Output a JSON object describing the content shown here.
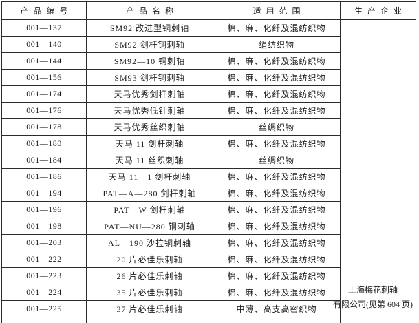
{
  "table": {
    "headers": {
      "code": "产品编号",
      "name": "产品名称",
      "scope": "适用范围",
      "producer": "生产企业"
    },
    "rows": [
      {
        "code": "001—137",
        "name": "SM92 改进型铜刺轴",
        "scope": "棉、麻、化纤及混纺织物"
      },
      {
        "code": "001—140",
        "name": "SM92 剑杆铜刺轴",
        "scope": "绢纺织物"
      },
      {
        "code": "001—144",
        "name": "SM92—10 铜刺轴",
        "scope": "棉、麻、化纤及混纺织物"
      },
      {
        "code": "001—156",
        "name": "SM93 剑杆铜刺轴",
        "scope": "棉、麻、化纤及混纺织物"
      },
      {
        "code": "001—174",
        "name": "天马优秀剑杆刺轴",
        "scope": "棉、麻、化纤及混纺织物"
      },
      {
        "code": "001—176",
        "name": "天马优秀低针刺轴",
        "scope": "棉、麻、化纤及混纺织物"
      },
      {
        "code": "001—178",
        "name": "天马优秀丝织刺轴",
        "scope": "丝绸织物"
      },
      {
        "code": "001—180",
        "name": "天马 11 剑杆刺轴",
        "scope": "棉、麻、化纤及混纺织物"
      },
      {
        "code": "001—184",
        "name": "天马 11 丝织刺轴",
        "scope": "丝绸织物"
      },
      {
        "code": "001—186",
        "name": "天马 11—1 剑杆刺轴",
        "scope": "棉、麻、化纤及混纺织物"
      },
      {
        "code": "001—194",
        "name": "PAT—A—280 剑杆刺轴",
        "scope": "棉、麻、化纤及混纺织物"
      },
      {
        "code": "001—196",
        "name": "PAT—W 剑杆刺轴",
        "scope": "棉、麻、化纤及混纺织物"
      },
      {
        "code": "001—198",
        "name": "PAT—NU—280 铜刺轴",
        "scope": "棉、麻、化纤及混纺织物"
      },
      {
        "code": "001—203",
        "name": "AL—190 沙拉铜刺轴",
        "scope": "棉、麻、化纤及混纺织物"
      },
      {
        "code": "001—222",
        "name": "20 片必佳乐刺轴",
        "scope": "棉、麻、化纤及混纺织物"
      },
      {
        "code": "001—223",
        "name": "26 片必佳乐刺轴",
        "scope": "棉、麻、化纤及混纺织物"
      },
      {
        "code": "001—224",
        "name": "35 片必佳乐刺轴",
        "scope": "棉、麻、化纤及混纺织物"
      },
      {
        "code": "001—225",
        "name": "37 片必佳乐刺轴",
        "scope": "中薄、高支高密织物"
      }
    ],
    "producer": {
      "line1": "上海梅花刺轴",
      "line2": "有限公司(见第 604 页)"
    }
  }
}
